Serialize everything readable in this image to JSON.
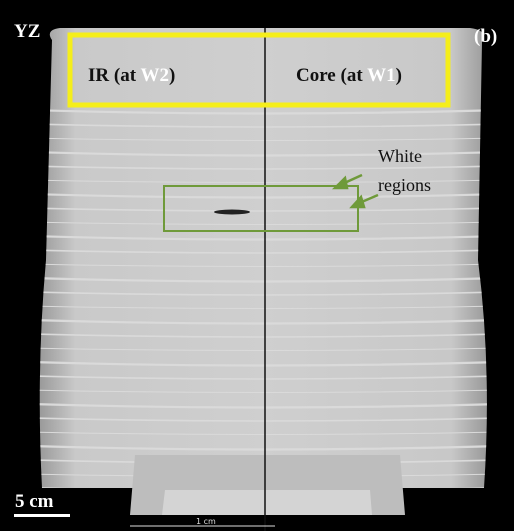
{
  "view_label": "YZ",
  "panel_label": "(b)",
  "ir_label": [
    "IR (at ",
    "W2",
    ")"
  ],
  "core_label": [
    "Core (at ",
    "W1",
    ")"
  ],
  "annotation": [
    "White",
    "regions"
  ],
  "scale_bar": "5 cm",
  "ruler_label": "1 cm"
}
